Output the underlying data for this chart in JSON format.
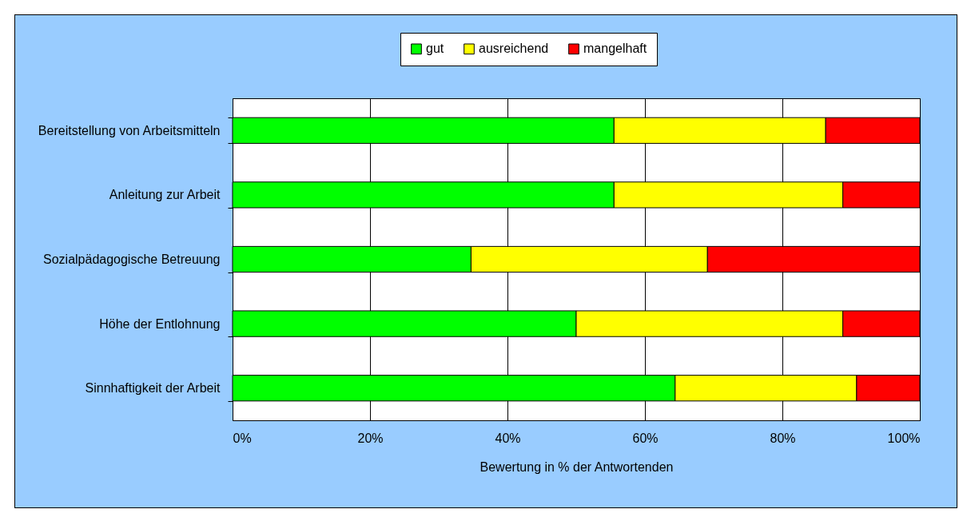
{
  "chart_data": {
    "type": "bar",
    "orientation": "horizontal",
    "stacked": true,
    "xlabel": "Bewertung in % der Antwortenden",
    "categories": [
      "Bereitstellung von Arbeitsmitteln",
      "Anleitung zur Arbeit",
      "Sozialpädagogische Betreuung",
      "Höhe der Entlohnung",
      "Sinnhaftigkeit der Arbeit"
    ],
    "series": [
      {
        "name": "gut",
        "color": "#00ff00",
        "values": [
          55.5,
          55.5,
          34.7,
          50.0,
          64.4
        ]
      },
      {
        "name": "ausreichend",
        "color": "#ffff00",
        "values": [
          30.8,
          33.3,
          34.4,
          38.8,
          26.4
        ]
      },
      {
        "name": "mangelhaft",
        "color": "#ff0000",
        "values": [
          13.7,
          11.2,
          30.9,
          11.2,
          9.2
        ]
      }
    ],
    "xlim": [
      0,
      100
    ],
    "xticks": [
      {
        "value": 0,
        "label": "0%"
      },
      {
        "value": 20,
        "label": "20%"
      },
      {
        "value": 40,
        "label": "40%"
      },
      {
        "value": 60,
        "label": "60%"
      },
      {
        "value": 80,
        "label": "80%"
      },
      {
        "value": 100,
        "label": "100%"
      }
    ],
    "grid": "x",
    "legend": "top"
  }
}
